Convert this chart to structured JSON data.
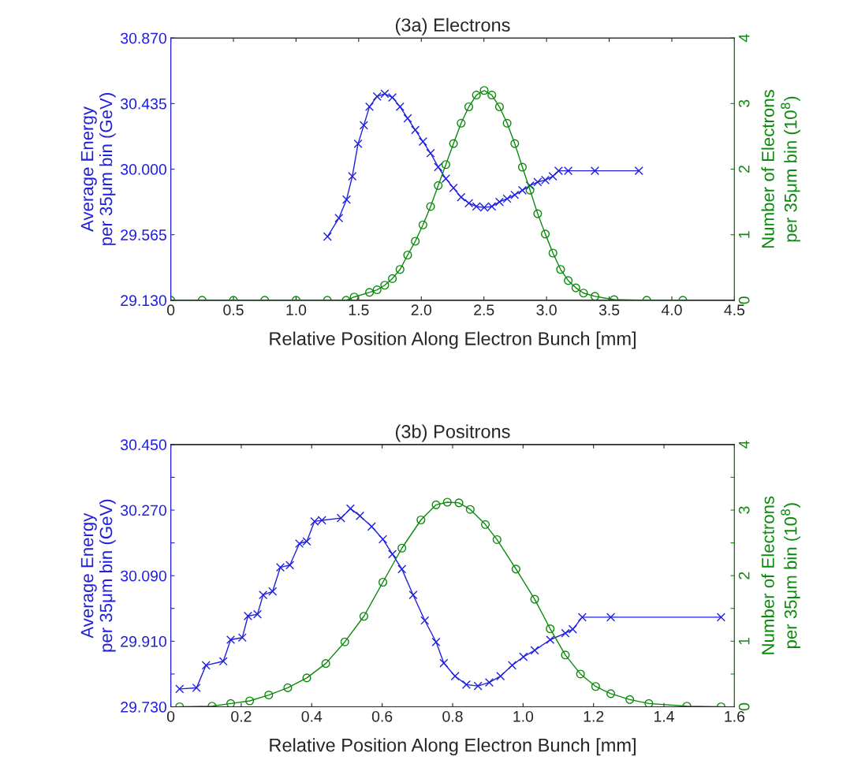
{
  "chart_data": [
    {
      "type": "line",
      "title": "(3a) Electrons",
      "xlabel": "Relative Position Along Electron Bunch [mm]",
      "ylabel": "Average Energy\nper 35μm bin (GeV)",
      "y2label": "Number of Electrons\nper 35μm bin (10$^{8}$)",
      "xlim": [
        0,
        4.5
      ],
      "xticks": [
        0,
        0.5,
        {
          "value": 1,
          "label": "1.0"
        },
        1.5,
        {
          "value": 2,
          "label": "2.0"
        },
        2.5,
        {
          "value": 3,
          "label": "3.0"
        },
        3.5,
        {
          "value": 4,
          "label": "4.0"
        },
        4.5
      ],
      "ylim": [
        29.13,
        30.87
      ],
      "yticks": [
        {
          "value": 29.13,
          "label": "29.130"
        },
        {
          "value": 29.565,
          "label": "29.565"
        },
        {
          "value": 30.0,
          "label": "30.000"
        },
        {
          "value": 30.435,
          "label": "30.435"
        },
        {
          "value": 30.87,
          "label": "30.870"
        }
      ],
      "y2lim": [
        0,
        4
      ],
      "y2ticks": [
        0,
        1,
        2,
        3,
        4
      ],
      "grid": false,
      "series": [
        {
          "color": "#1f1fe0",
          "marker": "cross",
          "x": [
            1.251,
            1.342,
            1.403,
            1.449,
            1.495,
            1.541,
            1.586,
            1.647,
            1.708,
            1.769,
            1.83,
            1.891,
            1.952,
            2.013,
            2.074,
            2.135,
            2.196,
            2.257,
            2.318,
            2.38,
            2.44,
            2.502,
            2.563,
            2.624,
            2.685,
            2.746,
            2.807,
            2.868,
            2.929,
            2.99,
            3.05,
            3.096,
            3.173,
            3.386,
            3.737
          ],
          "values": [
            29.552,
            29.675,
            29.798,
            29.952,
            30.168,
            30.291,
            30.414,
            30.482,
            30.5,
            30.476,
            30.414,
            30.337,
            30.26,
            30.183,
            30.106,
            30.014,
            29.937,
            29.875,
            29.814,
            29.774,
            29.752,
            29.746,
            29.752,
            29.783,
            29.804,
            29.829,
            29.86,
            29.891,
            29.915,
            29.928,
            29.952,
            29.989,
            29.989,
            29.989,
            29.989
          ]
        },
        {
          "color": "#0a8a0a",
          "marker": "circle",
          "axis": "y2",
          "x": [
            0,
            0.25,
            0.5,
            0.75,
            1.0,
            1.25,
            1.4,
            1.464,
            1.586,
            1.647,
            1.708,
            1.769,
            1.83,
            1.891,
            1.952,
            2.013,
            2.074,
            2.135,
            2.196,
            2.257,
            2.318,
            2.379,
            2.44,
            2.502,
            2.563,
            2.624,
            2.685,
            2.746,
            2.807,
            2.868,
            2.929,
            2.99,
            3.051,
            3.112,
            3.173,
            3.234,
            3.295,
            3.386,
            3.539,
            3.8,
            4.088
          ],
          "values": [
            0,
            0,
            0,
            0,
            0,
            0,
            0,
            0.05,
            0.12,
            0.16,
            0.23,
            0.33,
            0.47,
            0.69,
            0.9,
            1.15,
            1.43,
            1.75,
            2.07,
            2.39,
            2.7,
            2.95,
            3.13,
            3.2,
            3.13,
            2.95,
            2.7,
            2.39,
            2.03,
            1.68,
            1.32,
            1.01,
            0.72,
            0.47,
            0.3,
            0.19,
            0.11,
            0.06,
            0.01,
            0,
            0
          ]
        }
      ]
    },
    {
      "type": "line",
      "title": "(3b) Positrons",
      "xlabel": "Relative Position Along Electron Bunch [mm]",
      "ylabel": "Average Energy\nper 35μm bin (GeV)",
      "y2label": "Number of Electrons\nper 35μm bin (10$^{8}$)",
      "xlim": [
        0,
        1.6
      ],
      "xticks": [
        0,
        0.2,
        0.4,
        0.6,
        0.8,
        {
          "value": 1,
          "label": "1.0"
        },
        1.2,
        1.4,
        1.6
      ],
      "ylim": [
        29.73,
        30.45
      ],
      "yticks": [
        {
          "value": 29.73,
          "label": "29.730"
        },
        {
          "value": 29.82,
          "label": null
        },
        {
          "value": 29.91,
          "label": "29.910"
        },
        {
          "value": 30.0,
          "label": null
        },
        {
          "value": 30.09,
          "label": "30.090"
        },
        {
          "value": 30.18,
          "label": null
        },
        {
          "value": 30.27,
          "label": "30.270"
        },
        {
          "value": 30.36,
          "label": null
        },
        {
          "value": 30.45,
          "label": "30.450"
        }
      ],
      "y2lim": [
        0,
        4
      ],
      "y2ticks": [
        0,
        {
          "value": 0.5,
          "label": null
        },
        1,
        {
          "value": 1.5,
          "label": null
        },
        2,
        {
          "value": 2.5,
          "label": null
        },
        3,
        {
          "value": 3.5,
          "label": null
        },
        4
      ],
      "grid": false,
      "series": [
        {
          "color": "#1f1fe0",
          "marker": "cross",
          "x": [
            0.025,
            0.073,
            0.1,
            0.149,
            0.17,
            0.203,
            0.219,
            0.246,
            0.262,
            0.289,
            0.311,
            0.338,
            0.365,
            0.386,
            0.408,
            0.429,
            0.483,
            0.51,
            0.537,
            0.57,
            0.602,
            0.629,
            0.656,
            0.688,
            0.721,
            0.753,
            0.775,
            0.807,
            0.839,
            0.872,
            0.904,
            0.936,
            0.969,
            1.001,
            1.033,
            1.077,
            1.12,
            1.141,
            1.168,
            1.249,
            1.562
          ],
          "values": [
            29.779,
            29.782,
            29.844,
            29.855,
            29.914,
            29.92,
            29.979,
            29.984,
            30.037,
            30.047,
            30.113,
            30.119,
            30.178,
            30.184,
            30.239,
            30.242,
            30.248,
            30.274,
            30.254,
            30.225,
            30.19,
            30.149,
            30.108,
            30.037,
            29.967,
            29.908,
            29.85,
            29.814,
            29.791,
            29.787,
            29.797,
            29.814,
            29.844,
            29.867,
            29.885,
            29.914,
            29.932,
            29.943,
            29.976,
            29.976,
            29.976
          ]
        },
        {
          "color": "#0a8a0a",
          "marker": "circle",
          "axis": "y2",
          "x": [
            0.025,
            0.117,
            0.17,
            0.224,
            0.278,
            0.332,
            0.386,
            0.44,
            0.494,
            0.548,
            0.602,
            0.656,
            0.71,
            0.753,
            0.785,
            0.818,
            0.85,
            0.893,
            0.926,
            0.98,
            1.033,
            1.077,
            1.12,
            1.163,
            1.206,
            1.249,
            1.303,
            1.357,
            1.465,
            1.562
          ],
          "values": [
            0,
            0.01,
            0.05,
            0.09,
            0.18,
            0.29,
            0.44,
            0.66,
            0.99,
            1.38,
            1.9,
            2.42,
            2.85,
            3.08,
            3.12,
            3.11,
            3.01,
            2.78,
            2.55,
            2.1,
            1.64,
            1.19,
            0.79,
            0.5,
            0.31,
            0.2,
            0.11,
            0.05,
            0.01,
            0
          ]
        }
      ]
    }
  ]
}
